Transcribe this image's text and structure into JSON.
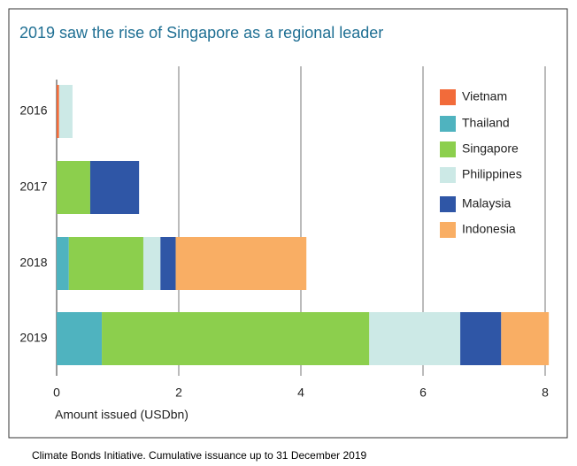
{
  "chart_data": {
    "type": "stacked-barh",
    "title": "2019 saw the rise of Singapore as a regional leader",
    "categories": [
      "2016",
      "2017",
      "2018",
      "2019"
    ],
    "series": [
      {
        "name": "Vietnam",
        "color": "#f26b3a",
        "values": [
          0.04,
          null,
          null,
          null
        ]
      },
      {
        "name": "Thailand",
        "color": "#4fb3bf",
        "values": [
          null,
          null,
          0.2,
          0.74
        ]
      },
      {
        "name": "Singapore",
        "color": "#8ccf4d",
        "values": [
          null,
          0.55,
          1.22,
          4.38
        ]
      },
      {
        "name": "Philippines",
        "color": "#cce9e6",
        "values": [
          0.22,
          null,
          0.28,
          1.49
        ]
      },
      {
        "name": "Malaysia",
        "color": "#2f56a6",
        "values": [
          null,
          0.8,
          0.25,
          0.67
        ]
      },
      {
        "name": "Indonesia",
        "color": "#f9ae64",
        "values": [
          null,
          null,
          2.14,
          0.78
        ]
      }
    ],
    "xlim": [
      0,
      8
    ],
    "xticks": [
      0,
      2,
      4,
      6,
      8
    ],
    "xlabel": "Amount issued (USDbn)",
    "grid": true,
    "legend": "upper right",
    "source": "Climate Bonds Initiative. Cumulative issuance up to 31 December 2019"
  }
}
